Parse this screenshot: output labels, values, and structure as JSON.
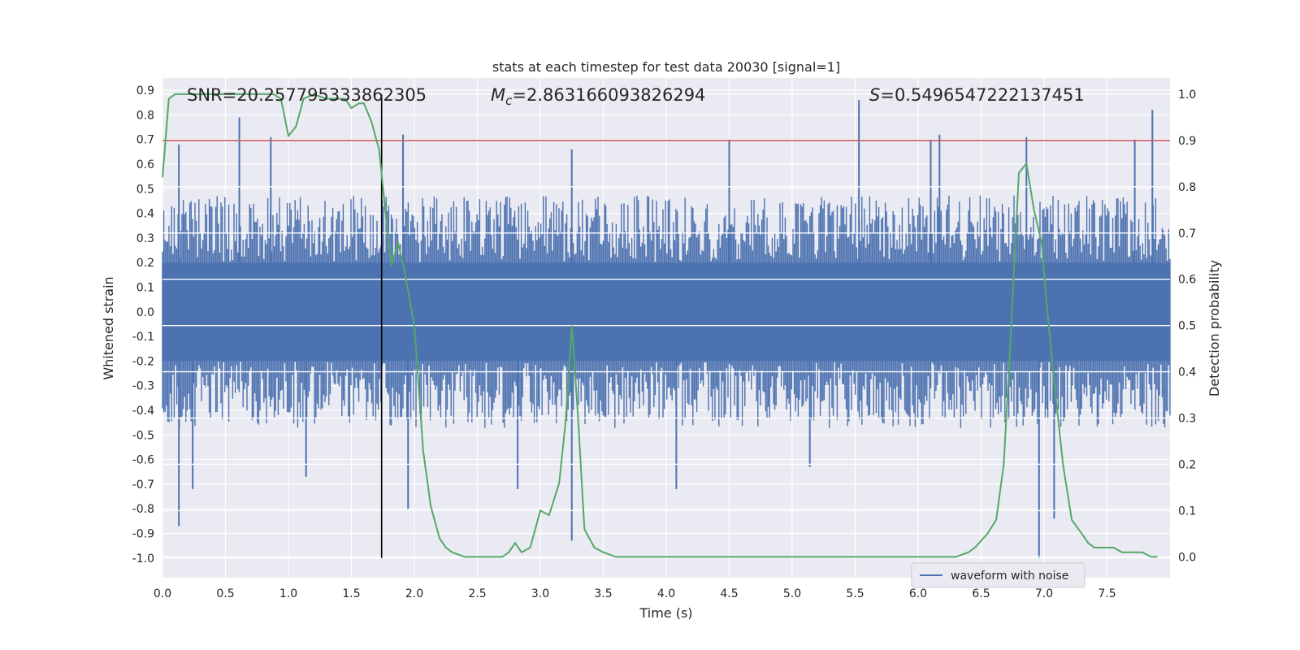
{
  "chart_data": {
    "type": "line",
    "title": "stats at each timestep for test data 20030 [signal=1]",
    "xlabel": "Time (s)",
    "ylabel_left": "Whitened strain",
    "ylabel_right": "Detection probability",
    "xlim": [
      0.0,
      8.0
    ],
    "ylim_left": [
      -1.08,
      0.95
    ],
    "ylim_right": [
      -0.045,
      1.035
    ],
    "x_ticks": [
      "0.0",
      "0.5",
      "1.0",
      "1.5",
      "2.0",
      "2.5",
      "3.0",
      "3.5",
      "4.0",
      "4.5",
      "5.0",
      "5.5",
      "6.0",
      "6.5",
      "7.0",
      "7.5"
    ],
    "y_ticks_left": [
      "0.9",
      "0.8",
      "0.7",
      "0.6",
      "0.5",
      "0.4",
      "0.3",
      "0.2",
      "0.1",
      "0.0",
      "-0.1",
      "-0.2",
      "-0.3",
      "-0.4",
      "-0.5",
      "-0.6",
      "-0.7",
      "-0.8",
      "-0.9",
      "-1.0"
    ],
    "y_ticks_right": [
      "1.0",
      "0.9",
      "0.8",
      "0.7",
      "0.6",
      "0.5",
      "0.4",
      "0.3",
      "0.2",
      "0.1",
      "0.0"
    ],
    "grid": true,
    "legend": {
      "position": "lower-right",
      "entries": [
        "waveform with noise"
      ]
    },
    "annotations": {
      "snr": "SNR=20.257795333862305",
      "mc_symbol": "M",
      "mc_sub": "c",
      "mc_value": "=2.863166093826294",
      "s_symbol": "S",
      "s_value": "=0.5496547222137451"
    },
    "threshold": {
      "value": 0.9,
      "axis": "right",
      "color": "#c44e52"
    },
    "marker_time": 1.74,
    "series": [
      {
        "name": "waveform with noise",
        "axis": "left",
        "color": "#4c72b0",
        "envelope_typical": [
          -0.45,
          0.45
        ],
        "spikes": [
          [
            0.13,
            0.68
          ],
          [
            0.13,
            -0.87
          ],
          [
            0.24,
            -0.72
          ],
          [
            0.61,
            0.79
          ],
          [
            0.86,
            0.71
          ],
          [
            1.14,
            -0.67
          ],
          [
            1.91,
            0.72
          ],
          [
            1.95,
            -0.8
          ],
          [
            2.82,
            -0.72
          ],
          [
            3.25,
            0.66
          ],
          [
            3.25,
            -0.93
          ],
          [
            4.08,
            -0.72
          ],
          [
            4.5,
            0.7
          ],
          [
            5.14,
            -0.63
          ],
          [
            5.53,
            0.86
          ],
          [
            6.1,
            0.7
          ],
          [
            6.17,
            0.72
          ],
          [
            6.86,
            0.71
          ],
          [
            6.96,
            -1.0
          ],
          [
            7.08,
            -0.84
          ],
          [
            7.86,
            0.82
          ],
          [
            7.72,
            0.7
          ]
        ]
      },
      {
        "name": "",
        "axis": "right",
        "color": "#55a868",
        "x": [
          0.0,
          0.05,
          0.1,
          0.15,
          0.2,
          0.3,
          0.4,
          0.5,
          0.6,
          0.7,
          0.8,
          0.88,
          0.94,
          1.0,
          1.06,
          1.12,
          1.2,
          1.3,
          1.4,
          1.45,
          1.5,
          1.56,
          1.6,
          1.66,
          1.72,
          1.78,
          1.82,
          1.87,
          1.92,
          2.0,
          2.07,
          2.13,
          2.2,
          2.25,
          2.3,
          2.4,
          2.5,
          2.6,
          2.7,
          2.75,
          2.8,
          2.85,
          2.92,
          3.0,
          3.07,
          3.15,
          3.2,
          3.25,
          3.3,
          3.35,
          3.43,
          3.5,
          3.6,
          3.8,
          4.0,
          4.3,
          4.6,
          5.0,
          5.5,
          6.0,
          6.3,
          6.4,
          6.45,
          6.55,
          6.62,
          6.68,
          6.73,
          6.8,
          6.86,
          6.92,
          6.98,
          7.02,
          7.08,
          7.15,
          7.22,
          7.3,
          7.35,
          7.4,
          7.48,
          7.55,
          7.62,
          7.7,
          7.78,
          7.85,
          7.9
        ],
        "y": [
          0.82,
          0.99,
          1.0,
          1.0,
          1.0,
          1.0,
          1.0,
          1.0,
          1.0,
          1.0,
          1.0,
          1.0,
          0.99,
          0.91,
          0.93,
          0.99,
          1.0,
          0.99,
          0.99,
          0.99,
          0.97,
          0.98,
          0.98,
          0.94,
          0.88,
          0.72,
          0.63,
          0.68,
          0.62,
          0.5,
          0.23,
          0.11,
          0.04,
          0.02,
          0.01,
          0.0,
          0.0,
          0.0,
          0.0,
          0.01,
          0.03,
          0.01,
          0.02,
          0.1,
          0.09,
          0.16,
          0.29,
          0.5,
          0.3,
          0.06,
          0.02,
          0.01,
          0.0,
          0.0,
          0.0,
          0.0,
          0.0,
          0.0,
          0.0,
          0.0,
          0.0,
          0.01,
          0.02,
          0.05,
          0.08,
          0.2,
          0.45,
          0.83,
          0.85,
          0.75,
          0.68,
          0.55,
          0.38,
          0.2,
          0.08,
          0.05,
          0.03,
          0.02,
          0.02,
          0.02,
          0.01,
          0.01,
          0.01,
          0.0,
          0.0
        ]
      }
    ]
  }
}
